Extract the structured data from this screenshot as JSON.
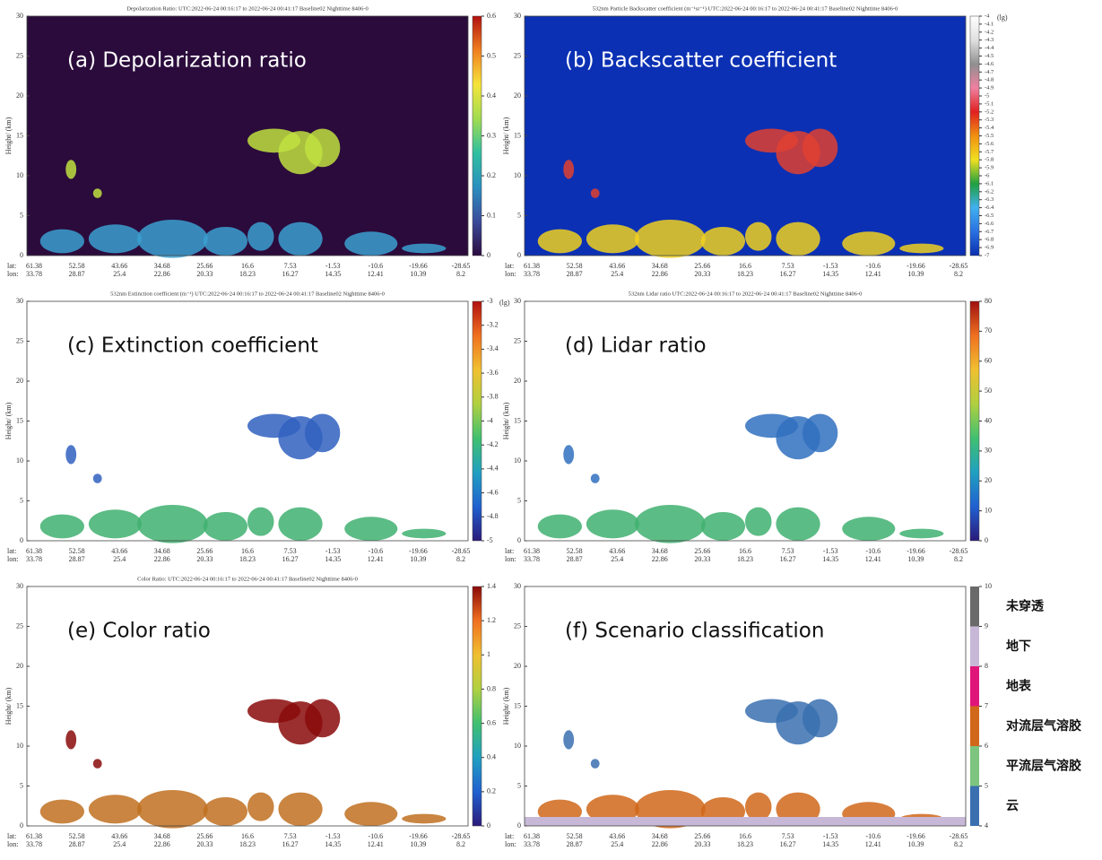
{
  "chart_data": [
    {
      "type": "heatmap",
      "title": "Depolarization Ratio: UTC:2022-06-24 00:16:17 to 2022-06-24 00:41:17 Baseline02 Nighttime 8406-0",
      "panel_label": "(a) Depolarization ratio",
      "ylabel": "Height/ (km)",
      "ylim": [
        0,
        30
      ],
      "yticks": [
        0,
        5,
        10,
        15,
        20,
        25,
        30
      ],
      "row_labels": [
        "lat:",
        "lon:"
      ],
      "lat": [
        61.38,
        52.58,
        43.66,
        34.68,
        25.66,
        16.6,
        7.53,
        -1.53,
        -10.6,
        -19.66,
        -28.65
      ],
      "lon": [
        33.78,
        28.87,
        25.4,
        22.86,
        20.33,
        18.23,
        16.27,
        14.35,
        12.41,
        10.39,
        8.2
      ],
      "clim": [
        0,
        0.6
      ],
      "cticks": [
        0,
        0.1,
        0.2,
        0.3,
        0.4,
        0.5,
        0.6
      ],
      "colormap": [
        "#2b0b3f",
        "#3b4b9a",
        "#2a8fbf",
        "#30c0a0",
        "#a0dc50",
        "#f5e43a",
        "#f08020",
        "#b01010"
      ],
      "background": "#2b0b3c"
    },
    {
      "type": "heatmap",
      "title": "532nm Particle Backscatter coefficient (m⁻¹sr⁻¹) UTC:2022-06-24 00:16:17 to 2022-06-24 00:41:17 Baseline02 Nighttime 8406-0",
      "panel_label": "(b) Backscatter coefficient",
      "ylabel": "Height/ (km)",
      "ylim": [
        0,
        30
      ],
      "yticks": [
        0,
        5,
        10,
        15,
        20,
        25,
        30
      ],
      "row_labels": [
        "lat:",
        "lon:"
      ],
      "lat": [
        61.38,
        52.58,
        43.66,
        34.68,
        25.66,
        16.6,
        7.53,
        -1.53,
        -10.6,
        -19.66,
        -28.65
      ],
      "lon": [
        33.78,
        28.87,
        25.4,
        22.86,
        20.33,
        18.23,
        16.27,
        14.35,
        12.41,
        10.39,
        8.2
      ],
      "clim": [
        -7,
        -4
      ],
      "cunit": "(lg)",
      "cticks": [
        -7,
        -6.9,
        -6.8,
        -6.7,
        -6.6,
        -6.5,
        -6.4,
        -6.3,
        -6.2,
        -6.1,
        -6,
        -5.9,
        -5.8,
        -5.7,
        -5.6,
        -5.5,
        -5.4,
        -5.3,
        -5.2,
        -5.1,
        -5,
        -4.9,
        -4.8,
        -4.7,
        -4.6,
        -4.5,
        -4.4,
        -4.3,
        -4.2,
        -4.1,
        -4
      ],
      "colormap": [
        "#0a2fb0",
        "#2a70e0",
        "#40b0f0",
        "#20a040",
        "#f0e020",
        "#f09010",
        "#e02020",
        "#f080a0",
        "#909090",
        "#e0e0e0",
        "#ffffff"
      ],
      "background": "#0b30b4"
    },
    {
      "type": "heatmap",
      "title": "532nm Extinction coefficient (m⁻¹) UTC:2022-06-24 00:16:17 to 2022-06-24 00:41:17 Baseline02 Nighttime 8406-0",
      "panel_label": "(c) Extinction coefficient",
      "ylabel": "Height/ (km)",
      "ylim": [
        0,
        30
      ],
      "yticks": [
        0,
        5,
        10,
        15,
        20,
        25,
        30
      ],
      "row_labels": [
        "lat:",
        "lon:"
      ],
      "lat": [
        61.38,
        52.58,
        43.66,
        34.68,
        25.66,
        16.6,
        7.53,
        -1.53,
        -10.6,
        -19.66,
        -28.65
      ],
      "lon": [
        33.78,
        28.87,
        25.4,
        22.86,
        20.33,
        18.23,
        16.27,
        14.35,
        12.41,
        10.39,
        8.2
      ],
      "clim": [
        -5,
        -3
      ],
      "cunit": "(lg)",
      "cticks": [
        -5,
        -4.8,
        -4.6,
        -4.4,
        -4.2,
        -4,
        -3.8,
        -3.6,
        -3.4,
        -3.2,
        -3
      ],
      "colormap": [
        "#2a1a7a",
        "#2060d0",
        "#20a0c0",
        "#40c070",
        "#b0d040",
        "#f0c030",
        "#f07020",
        "#b01010"
      ],
      "background": "#ffffff"
    },
    {
      "type": "heatmap",
      "title": "532nm Lidar ratio UTC:2022-06-24 00:16:17 to 2022-06-24 00:41:17 Baseline02 Nighttime 8406-0",
      "panel_label": "(d) Lidar ratio",
      "ylabel": "Height/ (km)",
      "ylim": [
        0,
        30
      ],
      "yticks": [
        0,
        5,
        10,
        15,
        20,
        25,
        30
      ],
      "row_labels": [
        "lat:",
        "lon:"
      ],
      "lat": [
        61.38,
        52.58,
        43.66,
        34.68,
        25.66,
        16.6,
        7.53,
        -1.53,
        -10.6,
        -19.66,
        -28.65
      ],
      "lon": [
        33.78,
        28.87,
        25.4,
        22.86,
        20.33,
        18.23,
        16.27,
        14.35,
        12.41,
        10.39,
        8.2
      ],
      "clim": [
        0,
        80
      ],
      "cticks": [
        0,
        10,
        20,
        30,
        40,
        50,
        60,
        70,
        80
      ],
      "colormap": [
        "#2a1a7a",
        "#2060d0",
        "#20a0c0",
        "#40c070",
        "#b0d040",
        "#f0c030",
        "#f07020",
        "#a01010"
      ],
      "background": "#ffffff"
    },
    {
      "type": "heatmap",
      "title": "Color Ratio: UTC:2022-06-24 00:16:17 to 2022-06-24 00:41:17 Baseline02 Nighttime 8406-0",
      "panel_label": "(e) Color ratio",
      "ylabel": "Height/ (km)",
      "ylim": [
        0,
        30
      ],
      "yticks": [
        0,
        5,
        10,
        15,
        20,
        25,
        30
      ],
      "row_labels": [
        "lat:",
        "lon:"
      ],
      "lat": [
        61.38,
        52.58,
        43.66,
        34.68,
        25.66,
        16.6,
        7.53,
        -1.53,
        -10.6,
        -19.66,
        -28.65
      ],
      "lon": [
        33.78,
        28.87,
        25.4,
        22.86,
        20.33,
        18.23,
        16.27,
        14.35,
        12.41,
        10.39,
        8.2
      ],
      "clim": [
        0,
        1.4
      ],
      "cticks": [
        0,
        0.2,
        0.4,
        0.6,
        0.8,
        1,
        1.2,
        1.4
      ],
      "colormap": [
        "#2a1a7a",
        "#2060d0",
        "#20a0c0",
        "#40c070",
        "#b0d040",
        "#f0c030",
        "#f07020",
        "#8a0a0a"
      ],
      "background": "#ffffff"
    },
    {
      "type": "classification",
      "panel_label": "(f) Scenario classification",
      "ylabel": "Height/ (km)",
      "ylim": [
        0,
        30
      ],
      "yticks": [
        0,
        5,
        10,
        15,
        20,
        25,
        30
      ],
      "row_labels": [
        "lat:",
        "lon:"
      ],
      "lat": [
        61.38,
        52.58,
        43.66,
        34.68,
        25.66,
        16.6,
        7.53,
        -1.53,
        -10.6,
        -19.66,
        -28.65
      ],
      "lon": [
        33.78,
        28.87,
        25.4,
        22.86,
        20.33,
        18.23,
        16.27,
        14.35,
        12.41,
        10.39,
        8.2
      ],
      "clim": [
        4,
        10
      ],
      "cticks": [
        4,
        5,
        6,
        7,
        8,
        9,
        10
      ],
      "classes": [
        "云",
        "平流层气溶胶",
        "对流层气溶胶",
        "地表",
        "地下",
        "未穿透"
      ],
      "class_colors": [
        "#3a70b0",
        "#7cc47f",
        "#d0671a",
        "#e0157a",
        "#c8b8d8",
        "#6a6a6a"
      ],
      "background": "#ffffff"
    }
  ]
}
